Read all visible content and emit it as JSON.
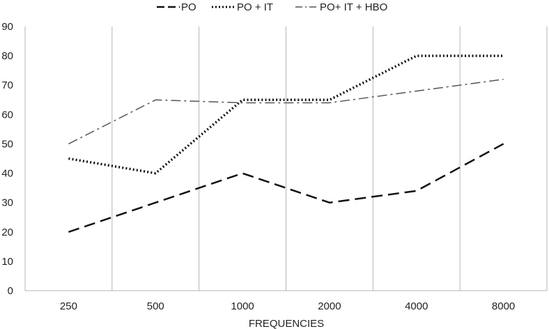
{
  "chart_data": {
    "type": "line",
    "categories": [
      "250",
      "500",
      "1000",
      "2000",
      "4000",
      "8000"
    ],
    "xlabel": "FREQUENCIES",
    "ylabel": "",
    "ylim": [
      0,
      90
    ],
    "yticks": [
      "0",
      "10",
      "20",
      "30",
      "40",
      "50",
      "60",
      "70",
      "80",
      "90"
    ],
    "grid": "vertical",
    "legend_position": "top",
    "series": [
      {
        "name": "PO",
        "values": [
          20,
          30,
          40,
          30,
          34,
          50
        ],
        "style": "dashed",
        "color": "#111111"
      },
      {
        "name": "PO + IT",
        "values": [
          45,
          40,
          65,
          65,
          80,
          80
        ],
        "style": "dotted",
        "color": "#111111"
      },
      {
        "name": "PO+ IT + HBO",
        "values": [
          50,
          65,
          64,
          64,
          68,
          72
        ],
        "style": "dash-dot",
        "color": "#555555"
      }
    ]
  }
}
